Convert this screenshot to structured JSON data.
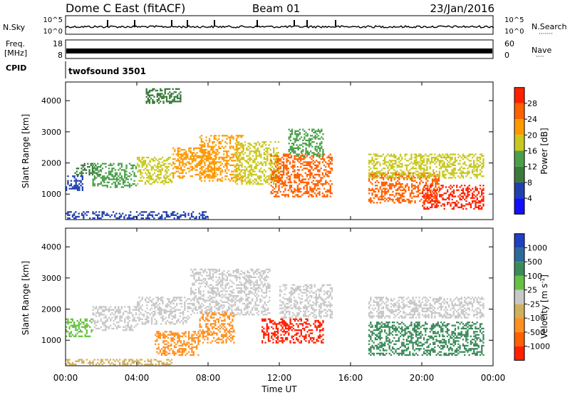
{
  "header": {
    "title": "Dome C East (fitACF)",
    "beam": "Beam 01",
    "date": "23/Jan/2016"
  },
  "panels": {
    "nsky_label": "N.Sky",
    "nsky_ticks": [
      "10^5",
      "10^0"
    ],
    "nsearch_label": "N.Search",
    "nsearch_dots": "·······",
    "freq_label_1": "Freq.",
    "freq_label_2": "[MHz]",
    "freq_ticks": [
      "18",
      "8"
    ],
    "nave_label": "Nave",
    "nave_dots": "····",
    "nave_ticks": [
      "60",
      "0"
    ],
    "cpid_label": "CPID",
    "cpid_value": "twofsound 3501"
  },
  "colors": {
    "power": [
      "#1010ff",
      "#2040b0",
      "#3a7a3a",
      "#4aa04a",
      "#c8c820",
      "#ff9900",
      "#ff6000",
      "#ff2000"
    ],
    "velocity": [
      "#2040c0",
      "#2c6a9a",
      "#3a8a5a",
      "#66c044",
      "#c8c8c8",
      "#d0b060",
      "#ff9020",
      "#ff6000",
      "#ff2000"
    ]
  },
  "chart_data": [
    {
      "type": "heatmap",
      "title": "",
      "xlabel": "Time UT",
      "ylabel": "Slant Range [km]",
      "x_ticks": [
        "00:00",
        "04:00",
        "08:00",
        "12:00",
        "16:00",
        "20:00",
        "00:00"
      ],
      "y_ticks": [
        1000,
        2000,
        3000,
        4000
      ],
      "ylim": [
        180,
        4600
      ],
      "colorbar_label": "Power [dB]",
      "colorbar_ticks": [
        4,
        8,
        12,
        16,
        20,
        24,
        28
      ],
      "colorbar_range": [
        0,
        32
      ],
      "regions": [
        {
          "t0": 0.0,
          "t1": 1.0,
          "r0": 1100,
          "r1": 1600,
          "value": 6
        },
        {
          "t0": 0.5,
          "t1": 2.0,
          "r0": 1600,
          "r1": 2000,
          "value": 10
        },
        {
          "t0": 1.5,
          "t1": 4.0,
          "r0": 1200,
          "r1": 2000,
          "value": 14
        },
        {
          "t0": 4.0,
          "t1": 6.0,
          "r0": 1300,
          "r1": 2200,
          "value": 17
        },
        {
          "t0": 6.0,
          "t1": 8.5,
          "r0": 1500,
          "r1": 2500,
          "value": 20
        },
        {
          "t0": 7.5,
          "t1": 10.0,
          "r0": 1400,
          "r1": 2900,
          "value": 23
        },
        {
          "t0": 9.5,
          "t1": 12.0,
          "r0": 1300,
          "r1": 2700,
          "value": 19
        },
        {
          "t0": 11.5,
          "t1": 15.0,
          "r0": 900,
          "r1": 2300,
          "value": 26
        },
        {
          "t0": 12.5,
          "t1": 14.5,
          "r0": 2200,
          "r1": 3100,
          "value": 14
        },
        {
          "t0": 17.0,
          "t1": 21.0,
          "r0": 700,
          "r1": 1700,
          "value": 27
        },
        {
          "t0": 17.0,
          "t1": 23.5,
          "r0": 1500,
          "r1": 2300,
          "value": 16
        },
        {
          "t0": 20.0,
          "t1": 23.5,
          "r0": 500,
          "r1": 1300,
          "value": 28
        },
        {
          "t0": 0.0,
          "t1": 8.0,
          "r0": 200,
          "r1": 450,
          "value": 7
        },
        {
          "t0": 4.5,
          "t1": 6.5,
          "r0": 3900,
          "r1": 4400,
          "value": 8
        }
      ]
    },
    {
      "type": "heatmap",
      "title": "",
      "xlabel": "Time UT",
      "ylabel": "Slant Range [km]",
      "x_ticks": [
        "00:00",
        "04:00",
        "08:00",
        "12:00",
        "16:00",
        "20:00",
        "00:00"
      ],
      "y_ticks": [
        1000,
        2000,
        3000,
        4000
      ],
      "ylim": [
        180,
        4600
      ],
      "colorbar_label": "Velocity [m s^-1]",
      "colorbar_ticks": [
        "1000",
        "500",
        "100",
        "25",
        "-25",
        "-100",
        "-500",
        "-1000"
      ],
      "regions": [
        {
          "t0": 0.0,
          "t1": 1.5,
          "r0": 1100,
          "r1": 1700,
          "value": 50
        },
        {
          "t0": 1.5,
          "t1": 4.0,
          "r0": 1300,
          "r1": 2100,
          "value": 0
        },
        {
          "t0": 4.0,
          "t1": 7.0,
          "r0": 1500,
          "r1": 2400,
          "value": 0
        },
        {
          "t0": 5.0,
          "t1": 7.5,
          "r0": 500,
          "r1": 1300,
          "value": -200
        },
        {
          "t0": 7.0,
          "t1": 11.5,
          "r0": 1800,
          "r1": 3300,
          "value": 0
        },
        {
          "t0": 7.5,
          "t1": 9.5,
          "r0": 900,
          "r1": 1900,
          "value": -400
        },
        {
          "t0": 11.0,
          "t1": 14.5,
          "r0": 900,
          "r1": 1700,
          "value": -600
        },
        {
          "t0": 12.0,
          "t1": 15.0,
          "r0": 1700,
          "r1": 2800,
          "value": 0
        },
        {
          "t0": 17.0,
          "t1": 23.5,
          "r0": 500,
          "r1": 1600,
          "value": 200
        },
        {
          "t0": 17.0,
          "t1": 23.5,
          "r0": 1700,
          "r1": 2400,
          "value": 0
        },
        {
          "t0": 0.0,
          "t1": 6.0,
          "r0": 200,
          "r1": 400,
          "value": -50
        }
      ]
    }
  ]
}
